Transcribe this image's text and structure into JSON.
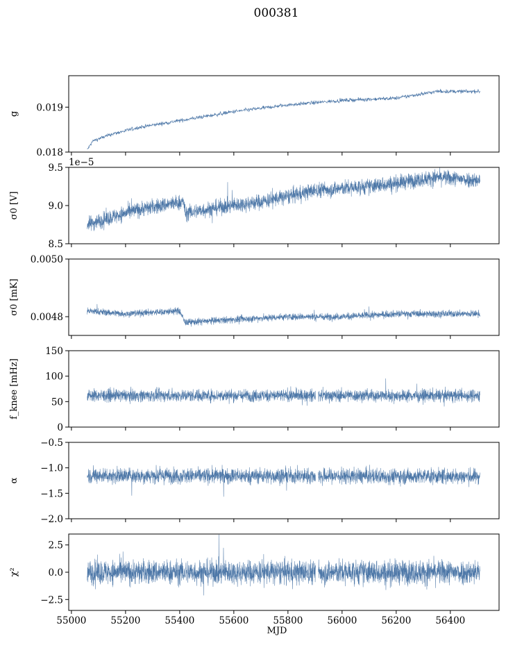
{
  "figure": {
    "title": "000381"
  },
  "colors": {
    "series": "#4e78a8",
    "axes": "#000000",
    "background": "#ffffff"
  },
  "chart_data": [
    {
      "type": "line",
      "ylabel": "g",
      "ylim": [
        0.018,
        0.0197
      ],
      "yticks": [
        0.018,
        0.019
      ],
      "ytick_labels": [
        "0.018",
        "0.019"
      ],
      "offset_label": "",
      "xlim": [
        54990,
        56580
      ],
      "x_range": [
        55058,
        56510
      ],
      "trend": [
        [
          55058,
          0.01805
        ],
        [
          55080,
          0.01825
        ],
        [
          55150,
          0.0184
        ],
        [
          55250,
          0.01855
        ],
        [
          55400,
          0.0187
        ],
        [
          55600,
          0.0189
        ],
        [
          55800,
          0.01905
        ],
        [
          56000,
          0.01915
        ],
        [
          56200,
          0.0192
        ],
        [
          56350,
          0.01935
        ],
        [
          56510,
          0.01935
        ]
      ],
      "noise": 4e-05
    },
    {
      "type": "line",
      "ylabel": "σ0 [V]",
      "ylim": [
        8.5e-05,
        9.5e-05
      ],
      "yticks": [
        8.5e-05,
        9e-05,
        9.5e-05
      ],
      "ytick_labels": [
        "8.5",
        "9.0",
        "9.5"
      ],
      "offset_label": "1e−5",
      "xlim": [
        54990,
        56580
      ],
      "x_range": [
        55058,
        56510
      ],
      "trend": [
        [
          55058,
          8.75e-05
        ],
        [
          55150,
          8.85e-05
        ],
        [
          55250,
          8.95e-05
        ],
        [
          55415,
          9.05e-05
        ],
        [
          55420,
          8.9e-05
        ],
        [
          55550,
          8.98e-05
        ],
        [
          55700,
          9.05e-05
        ],
        [
          55800,
          9.12e-05
        ],
        [
          55900,
          9.2e-05
        ],
        [
          56100,
          9.25e-05
        ],
        [
          56250,
          9.32e-05
        ],
        [
          56350,
          9.37e-05
        ],
        [
          56510,
          9.33e-05
        ]
      ],
      "noise": 1e-06
    },
    {
      "type": "line",
      "ylabel": "σ0 [mK]",
      "ylim": [
        0.004735,
        0.005
      ],
      "yticks": [
        0.0048,
        0.005
      ],
      "ytick_labels": [
        "0.0048",
        "0.0050"
      ],
      "offset_label": "",
      "xlim": [
        54990,
        56580
      ],
      "x_range": [
        55058,
        56510
      ],
      "trend": [
        [
          55058,
          0.00482
        ],
        [
          55200,
          0.00481
        ],
        [
          55400,
          0.00482
        ],
        [
          55420,
          0.00478
        ],
        [
          55600,
          0.00479
        ],
        [
          55800,
          0.0048
        ],
        [
          56000,
          0.0048
        ],
        [
          56200,
          0.00481
        ],
        [
          56510,
          0.00481
        ]
      ],
      "noise": 1.2e-05
    },
    {
      "type": "line",
      "ylabel": "f_knee [mHz]",
      "ylim": [
        0,
        150
      ],
      "yticks": [
        0,
        50,
        100,
        150
      ],
      "ytick_labels": [
        "0",
        "50",
        "100",
        "150"
      ],
      "offset_label": "",
      "xlim": [
        54990,
        56580
      ],
      "x_range": [
        55058,
        56510
      ],
      "trend": [
        [
          55058,
          62
        ],
        [
          56510,
          62
        ]
      ],
      "noise": 12,
      "gap": [
        55902,
        55912
      ]
    },
    {
      "type": "line",
      "ylabel": "α",
      "ylim": [
        -2.0,
        -0.5
      ],
      "yticks": [
        -2.0,
        -1.5,
        -1.0,
        -0.5
      ],
      "ytick_labels": [
        "−2.0",
        "−1.5",
        "−1.0",
        "−0.5"
      ],
      "offset_label": "",
      "xlim": [
        54990,
        56580
      ],
      "x_range": [
        55058,
        56510
      ],
      "trend": [
        [
          55058,
          -1.15
        ],
        [
          56510,
          -1.17
        ]
      ],
      "noise": 0.15,
      "gap": [
        55902,
        55912
      ]
    },
    {
      "type": "line",
      "ylabel": "χ²",
      "ylim": [
        -3.5,
        3.5
      ],
      "yticks": [
        -2.5,
        0.0,
        2.5
      ],
      "ytick_labels": [
        "−2.5",
        "0.0",
        "2.5"
      ],
      "offset_label": "",
      "xlim": [
        54990,
        56580
      ],
      "x_range": [
        55058,
        56510
      ],
      "trend": [
        [
          55058,
          0
        ],
        [
          56510,
          0
        ]
      ],
      "noise": 1.1,
      "gap": [
        55902,
        55912
      ],
      "xticks": [
        55000,
        55200,
        55400,
        55600,
        55800,
        56000,
        56200,
        56400
      ],
      "xtick_labels": [
        "55000",
        "55200",
        "55400",
        "55600",
        "55800",
        "56000",
        "56200",
        "56400"
      ],
      "xlabel": "MJD"
    }
  ]
}
